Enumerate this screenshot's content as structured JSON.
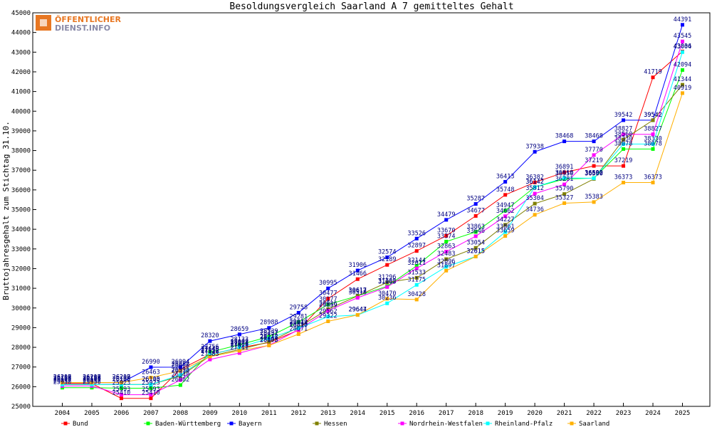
{
  "chart_data": {
    "type": "line",
    "title": "Besoldungsvergleich Saarland A 7 gemitteltes Gehalt",
    "ylabel": "Bruttojahresgehalt zum Stichtag 31.10.",
    "xlabel": "",
    "x": [
      "2004",
      "2005",
      "2006",
      "2007",
      "2008",
      "2009",
      "2010",
      "2011",
      "2012",
      "2013",
      "2014",
      "2015",
      "2016",
      "2017",
      "2018",
      "2019",
      "2020",
      "2021",
      "2022",
      "2023",
      "2024",
      "2025"
    ],
    "ylim": [
      25000,
      45000
    ],
    "yticks": [
      25000,
      26000,
      27000,
      28000,
      29000,
      30000,
      31000,
      32000,
      33000,
      34000,
      35000,
      36000,
      37000,
      38000,
      39000,
      40000,
      41000,
      42000,
      43000,
      44000,
      45000
    ],
    "grid": false,
    "legend_position": "bottom",
    "series": [
      {
        "name": "Bund",
        "color": "#ff0000",
        "values": [
          26158,
          26158,
          25410,
          25410,
          26882,
          27640,
          27973,
          28245,
          28870,
          30477,
          31466,
          32189,
          32897,
          33670,
          34677,
          35748,
          36382,
          36891,
          37219,
          37219,
          41719,
          43036
        ]
      },
      {
        "name": "Baden-Württemberg",
        "color": "#00ff00",
        "values": [
          25950,
          25950,
          25923,
          25923,
          26082,
          27756,
          28133,
          28539,
          29281,
          30177,
          30617,
          31102,
          32144,
          33374,
          33863,
          34947,
          36142,
          36550,
          36600,
          38078,
          38078,
          42094
        ]
      },
      {
        "name": "Bayern",
        "color": "#0000ff",
        "values": [
          26207,
          26207,
          26207,
          26990,
          26994,
          28320,
          28659,
          28988,
          29758,
          30995,
          31906,
          32574,
          33526,
          34479,
          35287,
          36413,
          37938,
          38468,
          38468,
          39542,
          39542,
          44391
        ]
      },
      {
        "name": "Hessen",
        "color": "#808000",
        "values": [
          26110,
          26110,
          26110,
          26110,
          26536,
          27557,
          27888,
          28272,
          29019,
          29936,
          30612,
          31296,
          31533,
          32483,
          33054,
          34227,
          35304,
          35790,
          36560,
          38560,
          39542,
          41344
        ]
      },
      {
        "name": "Nordrhein-Westfalen",
        "color": "#ff00ff",
        "values": [
          26037,
          26037,
          25593,
          25593,
          26340,
          27383,
          27711,
          28102,
          28896,
          29859,
          30518,
          31065,
          32011,
          32863,
          33646,
          34662,
          35812,
          36281,
          37770,
          38827,
          38827,
          43545
        ]
      },
      {
        "name": "Rheinland-Pfalz",
        "color": "#00ffff",
        "values": [
          26105,
          26105,
          26105,
          26105,
          26595,
          27616,
          28002,
          28451,
          28974,
          29562,
          29644,
          30236,
          31175,
          32096,
          32615,
          33861,
          36142,
          36610,
          36592,
          38330,
          38330,
          43004
        ]
      },
      {
        "name": "Saarland",
        "color": "#ffb000",
        "values": [
          26210,
          26210,
          26210,
          26463,
          26800,
          27528,
          27823,
          28095,
          28671,
          29322,
          29647,
          30470,
          30428,
          31897,
          32615,
          33659,
          34736,
          35327,
          35383,
          36373,
          36373,
          40919
        ]
      }
    ]
  },
  "watermark": {
    "text1": "ÖFFENTLICHER",
    "text2": "DIENST.INFO",
    "icon": "logo-icon"
  }
}
